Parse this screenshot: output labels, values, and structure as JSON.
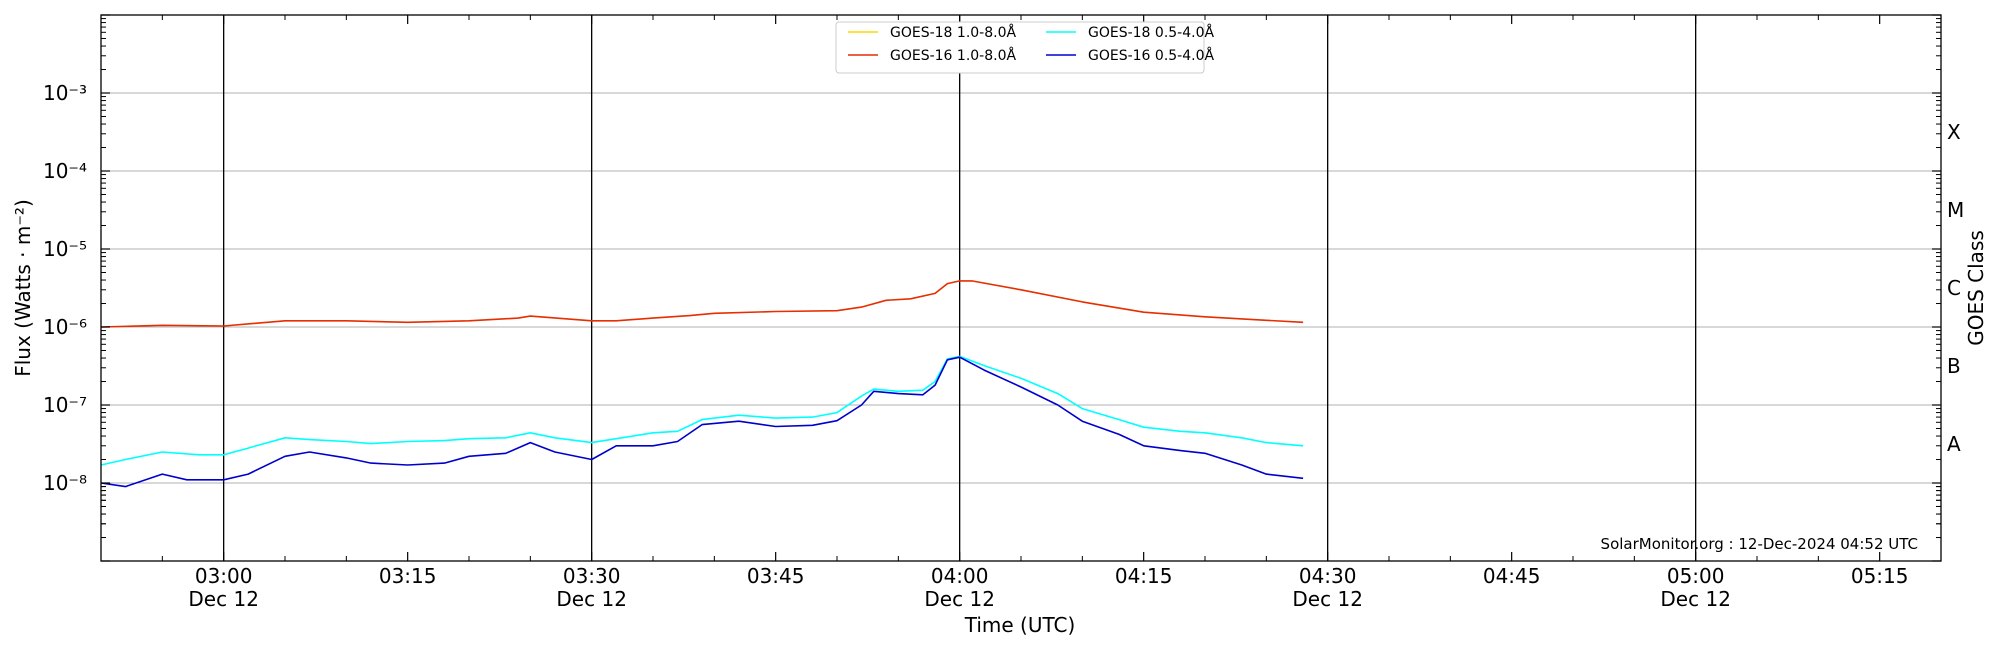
{
  "chart_data": {
    "type": "line",
    "xlabel": "Time (UTC)",
    "ylabel": "Flux (Watts · m⁻²)",
    "right_axis_label": "GOES Class",
    "y_scale": "log",
    "ylim": [
      "1e-9",
      "1e-2"
    ],
    "xlim": [
      "2024-12-12 02:50",
      "2024-12-12 05:20"
    ],
    "grid": "horizontal gridlines at decades",
    "legend_position": "top-center",
    "credit": "SolarMonitor.org : 12-Dec-2024 04:52 UTC",
    "x_ticks": [
      {
        "time": "03:00",
        "label": "03:00",
        "sublabel": "Dec 12",
        "vline": true
      },
      {
        "time": "03:15",
        "label": "03:15",
        "sublabel": "",
        "vline": false
      },
      {
        "time": "03:30",
        "label": "03:30",
        "sublabel": "Dec 12",
        "vline": true
      },
      {
        "time": "03:45",
        "label": "03:45",
        "sublabel": "",
        "vline": false
      },
      {
        "time": "04:00",
        "label": "04:00",
        "sublabel": "Dec 12",
        "vline": true
      },
      {
        "time": "04:15",
        "label": "04:15",
        "sublabel": "",
        "vline": false
      },
      {
        "time": "04:30",
        "label": "04:30",
        "sublabel": "Dec 12",
        "vline": true
      },
      {
        "time": "04:45",
        "label": "04:45",
        "sublabel": "",
        "vline": false
      },
      {
        "time": "05:00",
        "label": "05:00",
        "sublabel": "Dec 12",
        "vline": true
      },
      {
        "time": "05:15",
        "label": "05:15",
        "sublabel": "",
        "vline": false
      }
    ],
    "y_ticks": [
      {
        "exp": -8,
        "label": "10⁻⁸"
      },
      {
        "exp": -7,
        "label": "10⁻⁷"
      },
      {
        "exp": -6,
        "label": "10⁻⁶"
      },
      {
        "exp": -5,
        "label": "10⁻⁵"
      },
      {
        "exp": -4,
        "label": "10⁻⁴"
      },
      {
        "exp": -3,
        "label": "10⁻³"
      }
    ],
    "goes_classes": [
      {
        "label": "A",
        "exp": -7.5
      },
      {
        "label": "B",
        "exp": -6.5
      },
      {
        "label": "C",
        "exp": -5.5
      },
      {
        "label": "M",
        "exp": -4.5
      },
      {
        "label": "X",
        "exp": -3.5
      }
    ],
    "series": [
      {
        "name": "GOES-18 1.0-8.0Å",
        "color": "#FFD700",
        "times": [],
        "values": []
      },
      {
        "name": "GOES-16 1.0-8.0Å",
        "color": "#E62E00",
        "times": [
          "02:50",
          "02:55",
          "03:00",
          "03:05",
          "03:10",
          "03:15",
          "03:20",
          "03:24",
          "03:25",
          "03:30",
          "03:32",
          "03:35",
          "03:38",
          "03:40",
          "03:45",
          "03:50",
          "03:52",
          "03:54",
          "03:56",
          "03:58",
          "03:59",
          "04:00",
          "04:01",
          "04:05",
          "04:10",
          "04:15",
          "04:20",
          "04:25",
          "04:28"
        ],
        "values": [
          1e-06,
          1.05e-06,
          1.03e-06,
          1.2e-06,
          1.2e-06,
          1.15e-06,
          1.2e-06,
          1.3e-06,
          1.38e-06,
          1.2e-06,
          1.2e-06,
          1.3e-06,
          1.4e-06,
          1.5e-06,
          1.58e-06,
          1.62e-06,
          1.8e-06,
          2.2e-06,
          2.3e-06,
          2.7e-06,
          3.6e-06,
          3.9e-06,
          3.9e-06,
          3e-06,
          2.1e-06,
          1.55e-06,
          1.35e-06,
          1.22e-06,
          1.15e-06
        ]
      },
      {
        "name": "GOES-18 0.5-4.0Å",
        "color": "#00FFFF",
        "times": [
          "02:50",
          "02:52",
          "02:55",
          "02:58",
          "03:00",
          "03:02",
          "03:05",
          "03:07",
          "03:10",
          "03:12",
          "03:15",
          "03:18",
          "03:20",
          "03:23",
          "03:25",
          "03:27",
          "03:30",
          "03:32",
          "03:35",
          "03:37",
          "03:39",
          "03:42",
          "03:45",
          "03:48",
          "03:50",
          "03:52",
          "03:53",
          "03:55",
          "03:57",
          "03:58",
          "03:59",
          "04:00",
          "04:02",
          "04:05",
          "04:08",
          "04:10",
          "04:13",
          "04:15",
          "04:18",
          "04:20",
          "04:23",
          "04:25",
          "04:28"
        ],
        "values": [
          1.7e-08,
          2e-08,
          2.5e-08,
          2.3e-08,
          2.3e-08,
          2.8e-08,
          3.8e-08,
          3.6e-08,
          3.4e-08,
          3.2e-08,
          3.4e-08,
          3.5e-08,
          3.7e-08,
          3.8e-08,
          4.4e-08,
          3.8e-08,
          3.3e-08,
          3.7e-08,
          4.4e-08,
          4.6e-08,
          6.5e-08,
          7.4e-08,
          6.8e-08,
          7e-08,
          8e-08,
          1.3e-07,
          1.6e-07,
          1.5e-07,
          1.55e-07,
          2e-07,
          3.9e-07,
          4.2e-07,
          3.2e-07,
          2.2e-07,
          1.4e-07,
          9e-08,
          6.5e-08,
          5.2e-08,
          4.6e-08,
          4.4e-08,
          3.8e-08,
          3.3e-08,
          3e-08
        ]
      },
      {
        "name": "GOES-16 0.5-4.0Å",
        "color": "#0000CD",
        "times": [
          "02:50",
          "02:52",
          "02:55",
          "02:57",
          "03:00",
          "03:02",
          "03:05",
          "03:07",
          "03:10",
          "03:12",
          "03:15",
          "03:18",
          "03:20",
          "03:23",
          "03:25",
          "03:27",
          "03:30",
          "03:32",
          "03:35",
          "03:37",
          "03:39",
          "03:42",
          "03:45",
          "03:48",
          "03:50",
          "03:52",
          "03:53",
          "03:55",
          "03:57",
          "03:58",
          "03:59",
          "04:00",
          "04:02",
          "04:05",
          "04:08",
          "04:10",
          "04:13",
          "04:15",
          "04:18",
          "04:20",
          "04:23",
          "04:25",
          "04:28"
        ],
        "values": [
          1e-08,
          9e-09,
          1.3e-08,
          1.1e-08,
          1.1e-08,
          1.3e-08,
          2.2e-08,
          2.5e-08,
          2.1e-08,
          1.8e-08,
          1.7e-08,
          1.8e-08,
          2.2e-08,
          2.4e-08,
          3.3e-08,
          2.5e-08,
          2e-08,
          3e-08,
          3e-08,
          3.4e-08,
          5.6e-08,
          6.2e-08,
          5.3e-08,
          5.5e-08,
          6.3e-08,
          1e-07,
          1.5e-07,
          1.4e-07,
          1.35e-07,
          1.8e-07,
          3.8e-07,
          4.1e-07,
          2.8e-07,
          1.7e-07,
          1e-07,
          6.2e-08,
          4.2e-08,
          3e-08,
          2.6e-08,
          2.4e-08,
          1.7e-08,
          1.3e-08,
          1.15e-08
        ]
      }
    ]
  }
}
